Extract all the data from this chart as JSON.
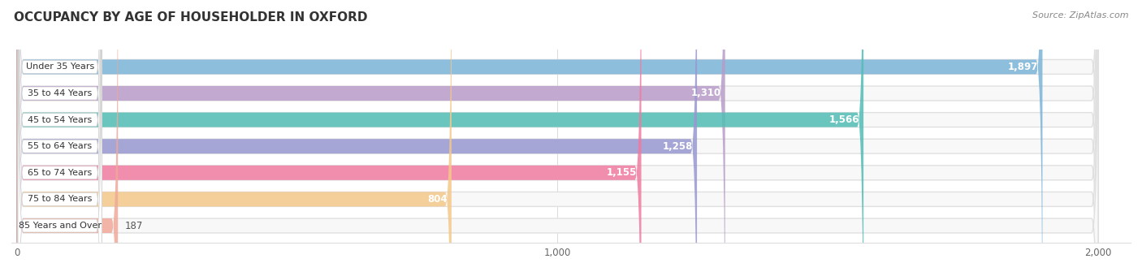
{
  "title": "OCCUPANCY BY AGE OF HOUSEHOLDER IN OXFORD",
  "source": "Source: ZipAtlas.com",
  "categories": [
    "Under 35 Years",
    "35 to 44 Years",
    "45 to 54 Years",
    "55 to 64 Years",
    "65 to 74 Years",
    "75 to 84 Years",
    "85 Years and Over"
  ],
  "values": [
    1897,
    1310,
    1566,
    1258,
    1155,
    804,
    187
  ],
  "bar_colors": [
    "#7ab4d8",
    "#b89bc8",
    "#52bdb5",
    "#9898d0",
    "#f07aa0",
    "#f5c888",
    "#f0a898"
  ],
  "xlim": [
    0,
    2000
  ],
  "xticks": [
    0,
    1000,
    2000
  ],
  "background_color": "#ffffff",
  "value_fontsize": 8.5,
  "label_fontsize": 8.0,
  "title_fontsize": 11
}
